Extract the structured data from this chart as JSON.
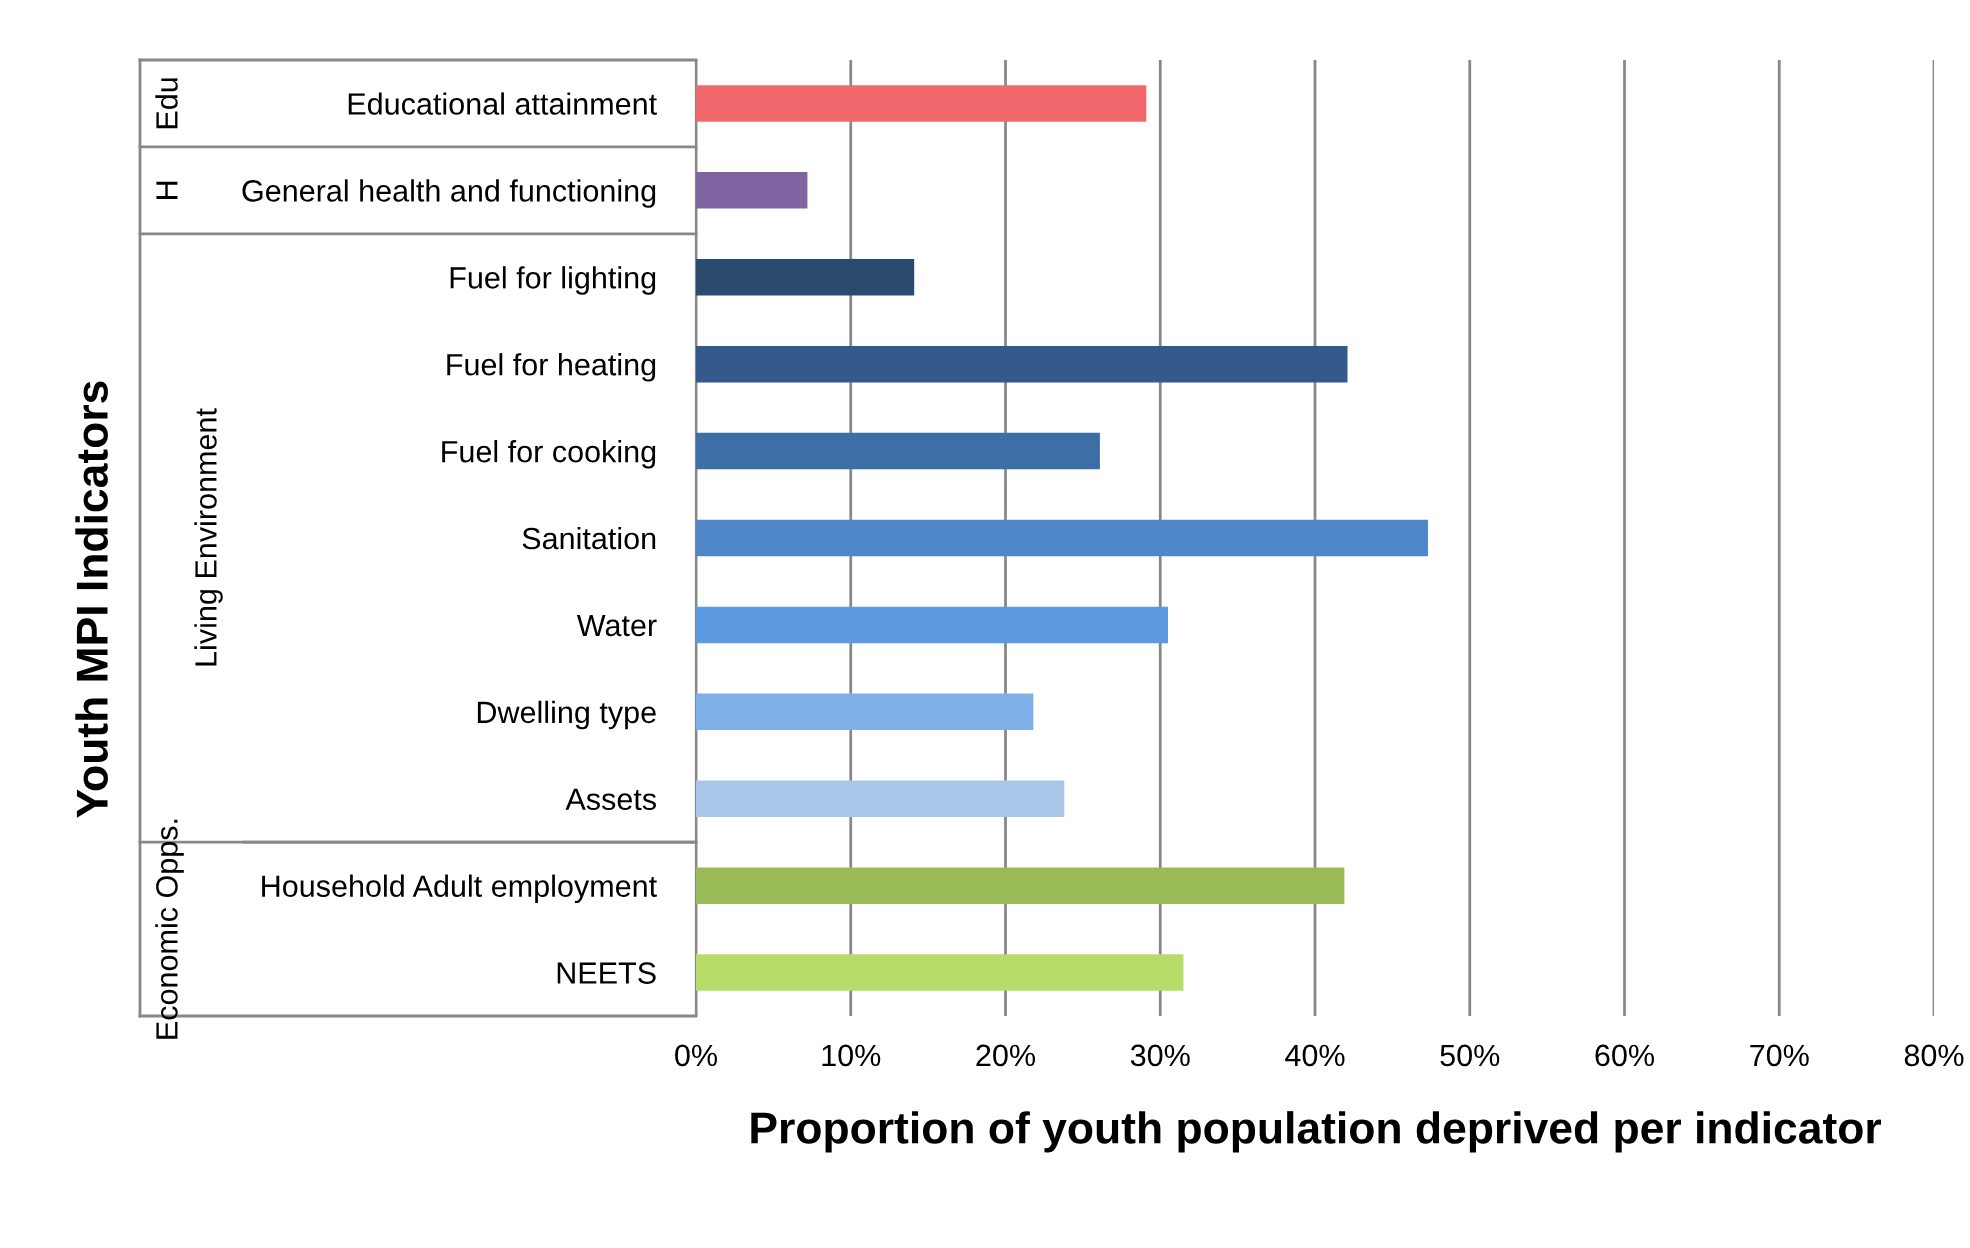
{
  "chart_data": {
    "type": "bar",
    "orientation": "horizontal",
    "xlabel": "Proportion of youth population deprived per indicator",
    "ylabel": "Youth MPI Indicators",
    "categories": [
      "Educational attainment",
      "General health and functioning",
      "Fuel for lighting",
      "Fuel for heating",
      "Fuel for cooking",
      "Sanitation",
      "Water",
      "Dwelling type",
      "Assets",
      "Household Adult employment",
      "NEETS"
    ],
    "values": [
      29.1,
      7.2,
      14.1,
      42.1,
      26.1,
      47.3,
      30.5,
      21.8,
      23.8,
      41.9,
      31.5
    ],
    "colors": [
      "#f0686c",
      "#8064a2",
      "#2a4a6e",
      "#335a8a",
      "#3d6ea6",
      "#4f86c8",
      "#5b9ae0",
      "#7fb0e8",
      "#a9c6e8",
      "#9bbb59",
      "#b8dc6a"
    ],
    "xlim": [
      0,
      80
    ],
    "xticks": [
      {
        "value": 0,
        "label": "0%"
      },
      {
        "value": 10,
        "label": "10%"
      },
      {
        "value": 20,
        "label": "20%"
      },
      {
        "value": 30,
        "label": "30%"
      },
      {
        "value": 40,
        "label": "40%"
      },
      {
        "value": 50,
        "label": "50%"
      },
      {
        "value": 60,
        "label": "60%"
      },
      {
        "value": 70,
        "label": "70%"
      },
      {
        "value": 80,
        "label": "80%"
      }
    ],
    "grid": "x",
    "annotations": [
      "Edu",
      "H",
      "Living Environment",
      "Economic Opps."
    ]
  }
}
